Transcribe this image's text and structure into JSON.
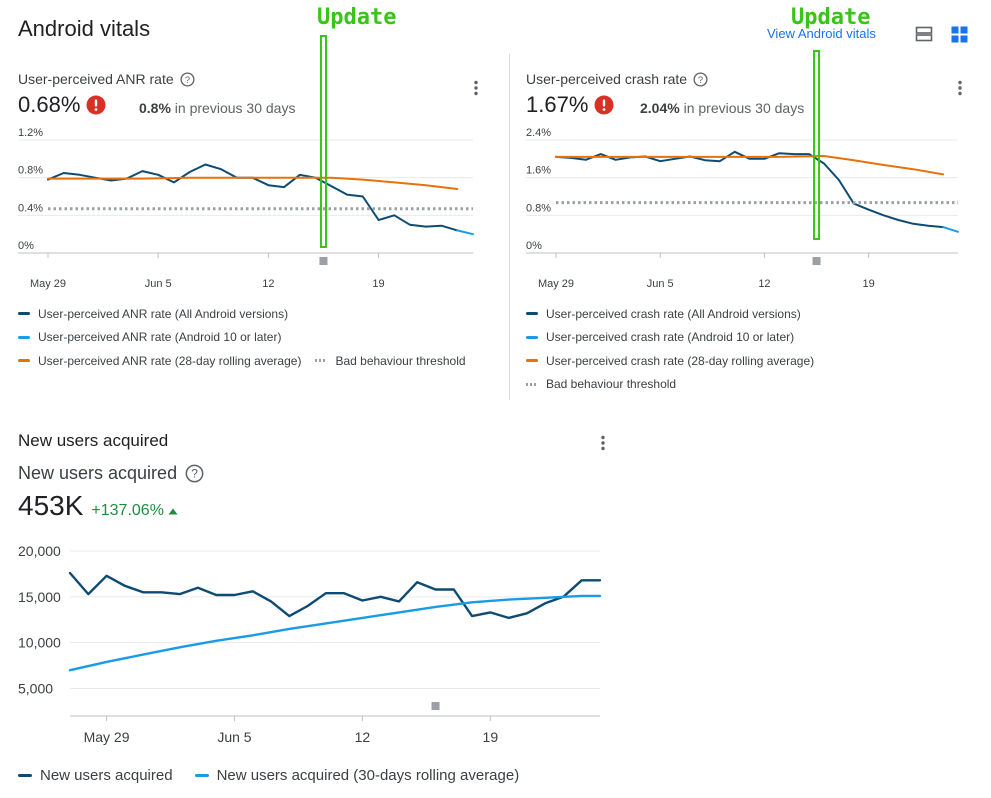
{
  "header": {
    "title": "Android vitals",
    "view_link": "View Android vitals",
    "annotation_label": "Update"
  },
  "anr": {
    "title": "User-perceived ANR rate",
    "value": "0.68%",
    "prev_value": "0.8%",
    "prev_suffix": " in previous 30 days"
  },
  "crash": {
    "title": "User-perceived crash rate",
    "value": "1.67%",
    "prev_value": "2.04%",
    "prev_suffix": " in previous 30 days"
  },
  "new_users": {
    "section_title": "New users acquired",
    "title": "New users acquired",
    "value": "453K",
    "change": "+137.06%"
  },
  "colors": {
    "navy": "#0d4b73",
    "light_blue": "#1a9be6",
    "orange": "#e8710a",
    "threshold": "#9aa0a6",
    "update_green": "#3ac41a",
    "warn_red": "#d93025",
    "positive_green": "#1e8e3e"
  },
  "chart_data": [
    {
      "id": "anr",
      "type": "line",
      "x_labels": [
        "May 29",
        "Jun 5",
        "12",
        "19"
      ],
      "x_label_days": [
        0,
        7,
        14,
        21
      ],
      "y_ticks": [
        "1.2%",
        "0.8%",
        "0.4%",
        "0%"
      ],
      "y_tick_values": [
        1.2,
        0.8,
        0.4,
        0
      ],
      "ylim": [
        0,
        1.2
      ],
      "xlim": [
        0,
        27
      ],
      "annotation_day": 17.5,
      "series": [
        {
          "name": "User-perceived ANR rate (All Android versions)",
          "color": "#0d4b73",
          "x": [
            0,
            1,
            2,
            3,
            4,
            5,
            6,
            7,
            8,
            9,
            10,
            11,
            12,
            13,
            14,
            15,
            16,
            17,
            18,
            19,
            20,
            21,
            22,
            23,
            24,
            25,
            26
          ],
          "values": [
            0.78,
            0.85,
            0.83,
            0.8,
            0.77,
            0.79,
            0.87,
            0.83,
            0.75,
            0.86,
            0.94,
            0.89,
            0.8,
            0.8,
            0.72,
            0.7,
            0.83,
            0.8,
            0.71,
            0.62,
            0.6,
            0.35,
            0.4,
            0.3,
            0.28,
            0.29,
            0.24
          ]
        },
        {
          "name": "User-perceived ANR rate (Android 10 or later)",
          "color": "#1a9be6",
          "x": [
            26,
            27
          ],
          "values": [
            0.24,
            0.2
          ]
        },
        {
          "name": "User-perceived ANR rate (28-day rolling average)",
          "color": "#e8710a",
          "x": [
            0,
            3,
            6,
            9,
            12,
            15,
            18,
            20,
            22,
            24,
            26
          ],
          "values": [
            0.79,
            0.79,
            0.79,
            0.8,
            0.8,
            0.8,
            0.8,
            0.78,
            0.75,
            0.72,
            0.68
          ]
        },
        {
          "name": "Bad behaviour threshold",
          "color": "#9aa0a6",
          "dashed": true,
          "x": [
            0,
            27
          ],
          "values": [
            0.47,
            0.47
          ]
        }
      ]
    },
    {
      "id": "crash",
      "type": "line",
      "x_labels": [
        "May 29",
        "Jun 5",
        "12",
        "19"
      ],
      "x_label_days": [
        0,
        7,
        14,
        21
      ],
      "y_ticks": [
        "2.4%",
        "1.6%",
        "0.8%",
        "0%"
      ],
      "y_tick_values": [
        2.4,
        1.6,
        0.8,
        0
      ],
      "ylim": [
        0,
        2.4
      ],
      "xlim": [
        0,
        27
      ],
      "annotation_day": 17.5,
      "series": [
        {
          "name": "User-perceived crash rate (All Android versions)",
          "color": "#0d4b73",
          "x": [
            0,
            1,
            2,
            3,
            4,
            5,
            6,
            7,
            8,
            9,
            10,
            11,
            12,
            13,
            14,
            15,
            16,
            17,
            18,
            19,
            20,
            21,
            22,
            23,
            24,
            25,
            26
          ],
          "values": [
            2.04,
            2.02,
            1.98,
            2.1,
            1.98,
            2.03,
            2.05,
            1.95,
            2.0,
            2.05,
            1.97,
            1.95,
            2.15,
            2.0,
            2.0,
            2.12,
            2.1,
            2.1,
            1.9,
            1.55,
            1.05,
            0.92,
            0.8,
            0.7,
            0.62,
            0.58,
            0.55
          ]
        },
        {
          "name": "User-perceived crash rate (Android 10 or later)",
          "color": "#1a9be6",
          "x": [
            26,
            27
          ],
          "values": [
            0.55,
            0.45
          ]
        },
        {
          "name": "User-perceived crash rate (28-day rolling average)",
          "color": "#e8710a",
          "x": [
            0,
            3,
            6,
            9,
            12,
            15,
            18,
            20,
            22,
            24,
            26
          ],
          "values": [
            2.04,
            2.04,
            2.04,
            2.04,
            2.04,
            2.04,
            2.06,
            1.97,
            1.87,
            1.78,
            1.67
          ]
        },
        {
          "name": "Bad behaviour threshold",
          "color": "#9aa0a6",
          "dashed": true,
          "x": [
            0,
            27
          ],
          "values": [
            1.07,
            1.07
          ]
        }
      ]
    },
    {
      "id": "new_users",
      "type": "line",
      "x_labels": [
        "May 29",
        "Jun 5",
        "12",
        "19"
      ],
      "x_label_days": [
        2,
        9,
        16,
        23
      ],
      "y_ticks": [
        "20,000",
        "15,000",
        "10,000",
        "5,000"
      ],
      "y_tick_values": [
        20000,
        15000,
        10000,
        5000
      ],
      "ylim": [
        2000,
        20000
      ],
      "xlim": [
        0,
        29
      ],
      "annotation_day": 20,
      "series": [
        {
          "name": "New users acquired",
          "color": "#0d4b73",
          "x": [
            0,
            1,
            2,
            3,
            4,
            5,
            6,
            7,
            8,
            9,
            10,
            11,
            12,
            13,
            14,
            15,
            16,
            17,
            18,
            19,
            20,
            21,
            22,
            23,
            24,
            25,
            26,
            27,
            28,
            29
          ],
          "values": [
            17600,
            15300,
            17300,
            16200,
            15500,
            15500,
            15300,
            16000,
            15200,
            15200,
            15600,
            14500,
            12900,
            14000,
            15400,
            15400,
            14600,
            15000,
            14500,
            16600,
            15800,
            15800,
            12900,
            13300,
            12700,
            13200,
            14300,
            15000,
            16800,
            16800
          ]
        },
        {
          "name": "New users acquired (30-days rolling average)",
          "color": "#1a9be6",
          "x": [
            0,
            2,
            4,
            6,
            8,
            10,
            12,
            14,
            16,
            18,
            20,
            22,
            24,
            26,
            28,
            29
          ],
          "values": [
            7000,
            7900,
            8700,
            9500,
            10200,
            10800,
            11500,
            12100,
            12700,
            13300,
            13900,
            14400,
            14700,
            14900,
            15100,
            15100
          ]
        }
      ]
    }
  ]
}
